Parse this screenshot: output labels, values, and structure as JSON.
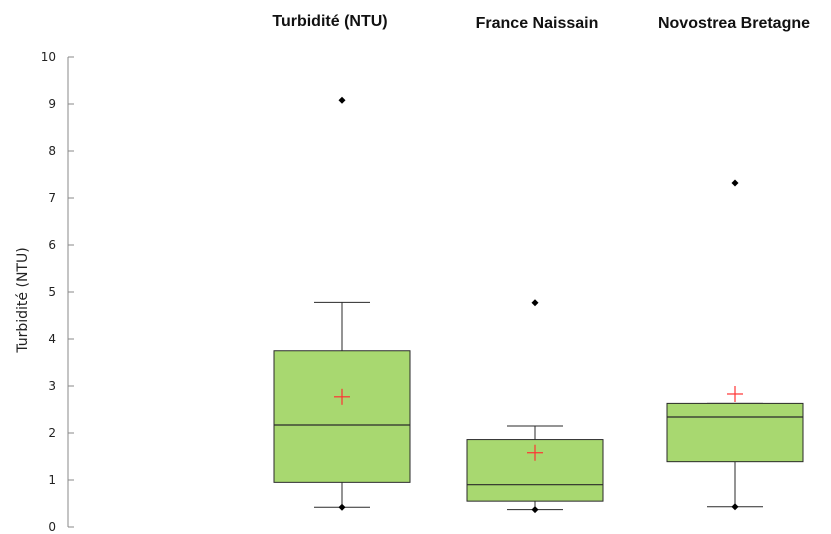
{
  "chart_data": {
    "type": "box",
    "categories": [
      "Turbidité (NTU)",
      "France Naissain",
      "Novostrea Bretagne"
    ],
    "ylabel": "Turbidité (NTU)",
    "xlabel": "",
    "ylim": [
      0,
      10
    ],
    "yticks": [
      0,
      1,
      2,
      3,
      4,
      5,
      6,
      7,
      8,
      9,
      10
    ],
    "category_labels_position": "top",
    "boxes": [
      {
        "min": 0.42,
        "q1": 0.95,
        "median": 2.17,
        "q3": 3.75,
        "max": 4.78,
        "mean": 2.77,
        "min_marker": 0.42,
        "outliers": [
          9.08
        ]
      },
      {
        "min": 0.37,
        "q1": 0.55,
        "median": 0.9,
        "q3": 1.86,
        "max": 2.15,
        "mean": 1.58,
        "min_marker": 0.37,
        "outliers": [
          4.77
        ]
      },
      {
        "min": 0.43,
        "q1": 1.39,
        "median": 2.34,
        "q3": 2.63,
        "max": 2.63,
        "mean": 2.83,
        "min_marker": 0.43,
        "outliers": [
          7.32
        ]
      }
    ],
    "colors": {
      "box_fill": "#a8d870",
      "box_stroke": "#2a2a2a",
      "mean_marker": "#ff3333",
      "point": "#000000",
      "axis": "#888888"
    },
    "mean_marker_shape": "plus",
    "outlier_marker_shape": "diamond"
  }
}
